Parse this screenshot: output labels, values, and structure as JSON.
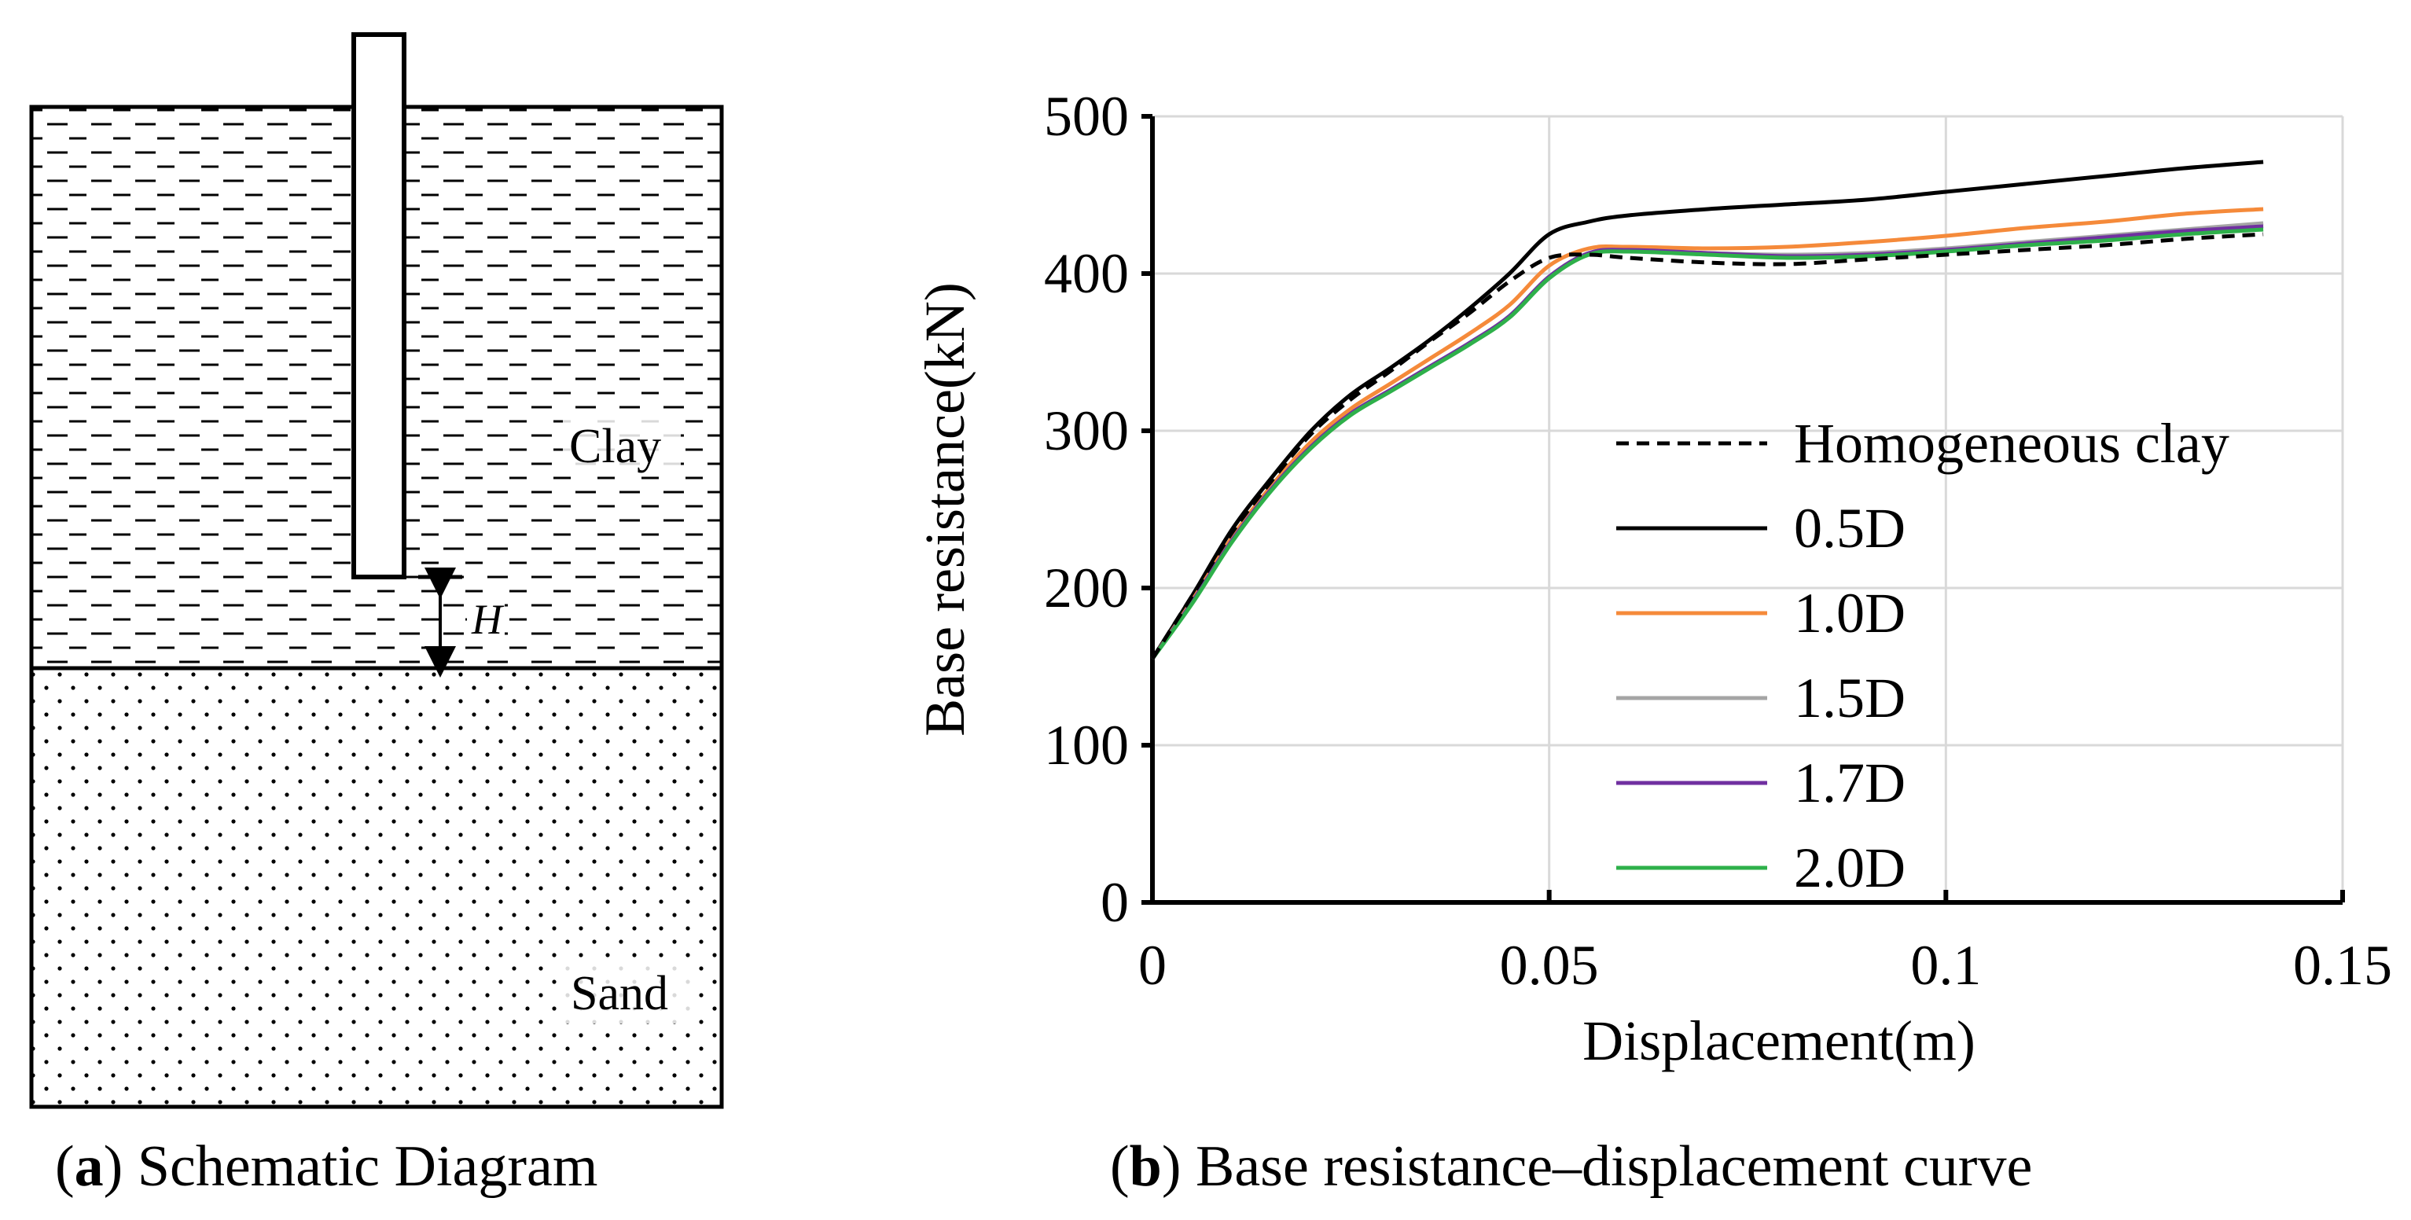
{
  "panel_a": {
    "caption_letter": "a",
    "caption_text": " Schematic Diagram",
    "clay_label": "Clay",
    "sand_label": "Sand",
    "h_label": "H"
  },
  "panel_b": {
    "caption_letter": "b",
    "caption_text": " Base resistance–displacement curve"
  },
  "chart_data": {
    "type": "line",
    "title": "",
    "xlabel": "Displacement(m)",
    "ylabel": "Base resistance(kN)",
    "xlim": [
      0,
      0.15
    ],
    "ylim": [
      0,
      500
    ],
    "xticks": [
      0,
      0.05,
      0.1,
      0.15
    ],
    "xtick_labels": [
      "0",
      "0.05",
      "0.1",
      "0.15"
    ],
    "yticks": [
      0,
      100,
      200,
      300,
      400,
      500
    ],
    "ytick_labels": [
      "0",
      "100",
      "200",
      "300",
      "400",
      "500"
    ],
    "grid": true,
    "legend_position": "right",
    "series": [
      {
        "name": "Homogeneous clay",
        "color": "#000000",
        "dash": true,
        "x": [
          0,
          0.005,
          0.01,
          0.015,
          0.02,
          0.025,
          0.03,
          0.035,
          0.04,
          0.045,
          0.05,
          0.055,
          0.06,
          0.07,
          0.08,
          0.09,
          0.1,
          0.11,
          0.12,
          0.13,
          0.14
        ],
        "y": [
          155,
          195,
          235,
          268,
          298,
          320,
          338,
          357,
          375,
          395,
          410,
          412,
          410,
          407,
          406,
          409,
          412,
          415,
          418,
          422,
          425
        ]
      },
      {
        "name": "0.5D",
        "color": "#000000",
        "dash": false,
        "x": [
          0,
          0.005,
          0.01,
          0.015,
          0.02,
          0.025,
          0.03,
          0.035,
          0.04,
          0.045,
          0.05,
          0.055,
          0.06,
          0.07,
          0.08,
          0.09,
          0.1,
          0.11,
          0.12,
          0.13,
          0.14
        ],
        "y": [
          155,
          195,
          237,
          270,
          300,
          323,
          340,
          358,
          378,
          400,
          425,
          433,
          437,
          441,
          444,
          447,
          452,
          457,
          462,
          467,
          471
        ]
      },
      {
        "name": "1.0D",
        "color": "#f58a3a",
        "dash": false,
        "x": [
          0,
          0.005,
          0.01,
          0.015,
          0.02,
          0.025,
          0.03,
          0.035,
          0.04,
          0.045,
          0.05,
          0.055,
          0.06,
          0.07,
          0.08,
          0.09,
          0.1,
          0.11,
          0.12,
          0.13,
          0.14
        ],
        "y": [
          155,
          192,
          232,
          265,
          293,
          314,
          330,
          346,
          362,
          380,
          405,
          416,
          417,
          416,
          417,
          420,
          424,
          429,
          433,
          438,
          441
        ]
      },
      {
        "name": "1.5D",
        "color": "#a5a5a5",
        "dash": false,
        "x": [
          0,
          0.005,
          0.01,
          0.015,
          0.02,
          0.025,
          0.03,
          0.035,
          0.04,
          0.045,
          0.05,
          0.055,
          0.06,
          0.07,
          0.08,
          0.09,
          0.1,
          0.11,
          0.12,
          0.13,
          0.14
        ],
        "y": [
          155,
          191,
          230,
          263,
          290,
          311,
          326,
          341,
          356,
          373,
          398,
          413,
          415,
          413,
          412,
          413,
          416,
          420,
          424,
          428,
          432
        ]
      },
      {
        "name": "1.7D",
        "color": "#7030a0",
        "dash": false,
        "x": [
          0,
          0.005,
          0.01,
          0.015,
          0.02,
          0.025,
          0.03,
          0.035,
          0.04,
          0.045,
          0.05,
          0.055,
          0.06,
          0.07,
          0.08,
          0.09,
          0.1,
          0.11,
          0.12,
          0.13,
          0.14
        ],
        "y": [
          155,
          191,
          230,
          263,
          290,
          311,
          326,
          341,
          356,
          373,
          398,
          413,
          415,
          413,
          411,
          412,
          415,
          419,
          423,
          427,
          430
        ]
      },
      {
        "name": "2.0D",
        "color": "#2eb04a",
        "dash": false,
        "x": [
          0,
          0.005,
          0.01,
          0.015,
          0.02,
          0.025,
          0.03,
          0.035,
          0.04,
          0.045,
          0.05,
          0.055,
          0.06,
          0.07,
          0.08,
          0.09,
          0.1,
          0.11,
          0.12,
          0.13,
          0.14
        ],
        "y": [
          155,
          190,
          229,
          262,
          289,
          310,
          325,
          340,
          355,
          372,
          397,
          412,
          414,
          412,
          410,
          411,
          414,
          418,
          421,
          425,
          428
        ]
      }
    ]
  }
}
